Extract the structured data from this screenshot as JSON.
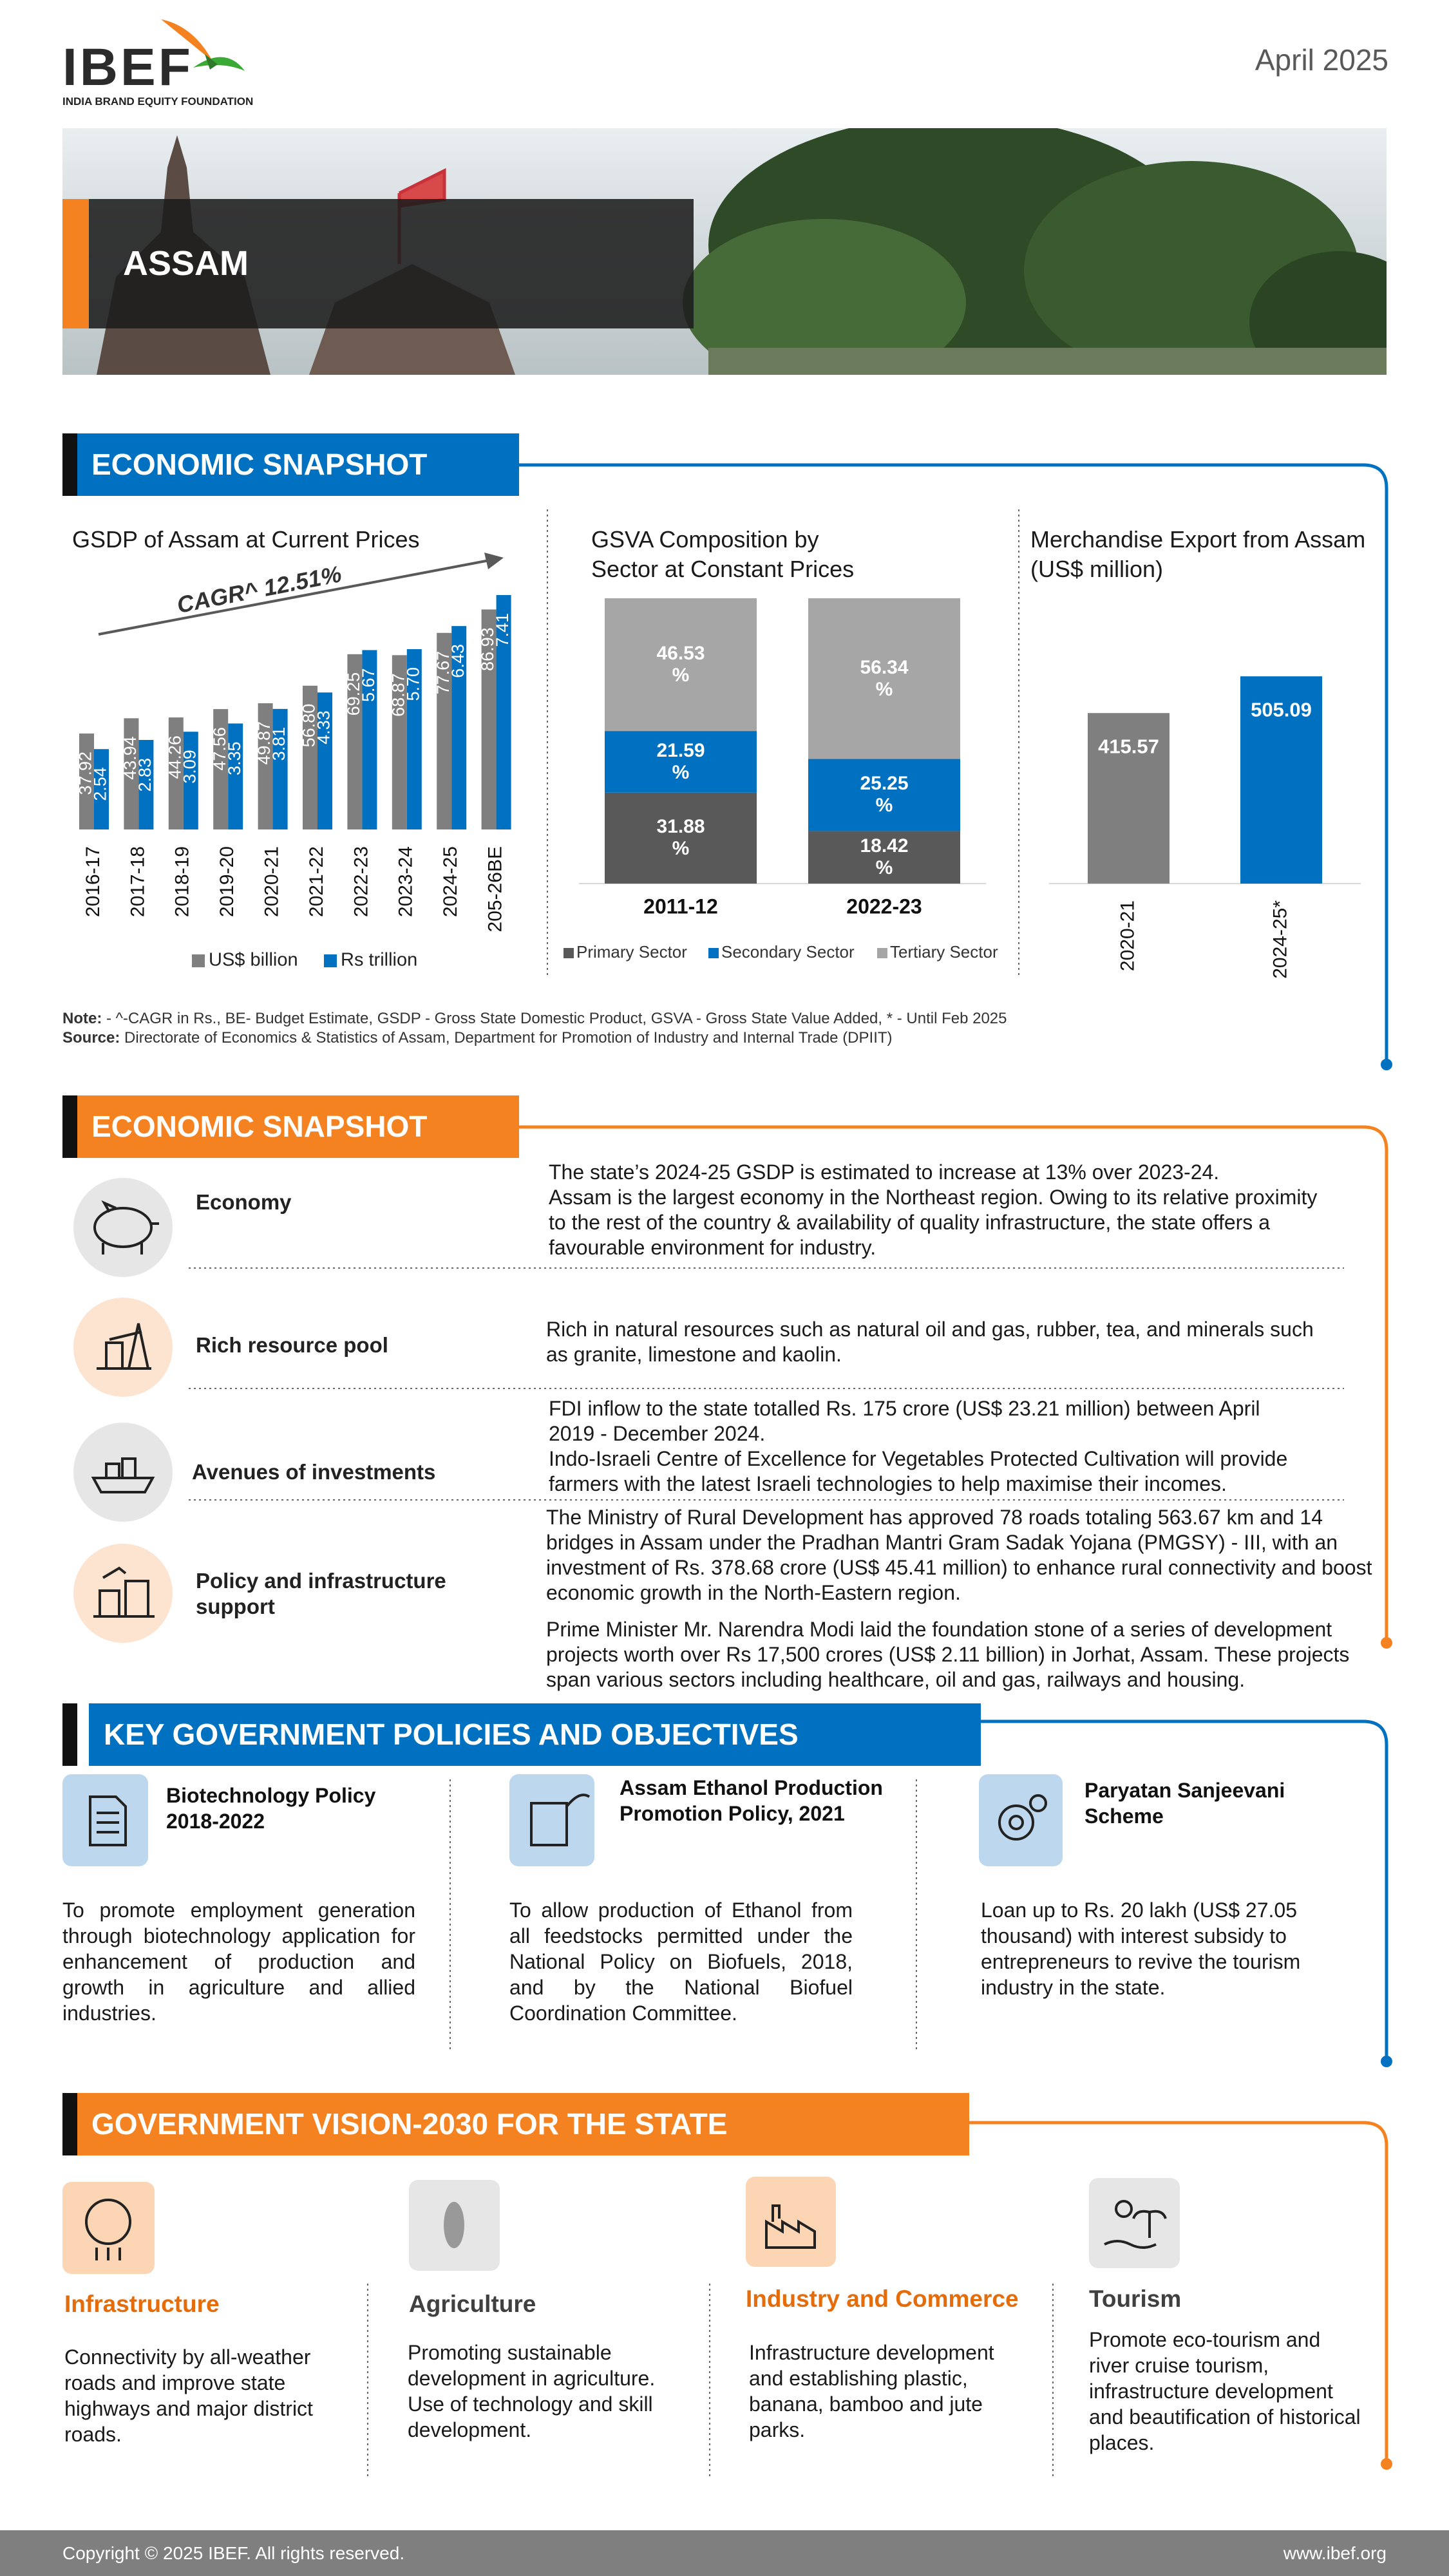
{
  "header": {
    "logo": "IBEF",
    "logo_subtitle": "INDIA BRAND EQUITY FOUNDATION",
    "date": "April 2025",
    "state": "ASSAM"
  },
  "snapshot_1": {
    "title": "ECONOMIC SNAPSHOT"
  },
  "chart_data": [
    {
      "type": "bar",
      "title": "GSDP of Assam at Current Prices",
      "annotation": "CAGR^ 12.51%",
      "categories": [
        "2016-17",
        "2017-18",
        "2018-19",
        "2019-20",
        "2020-21",
        "2021-22",
        "2022-23",
        "2023-24",
        "2024-25",
        "205-26BE"
      ],
      "series": [
        {
          "name": "US$ billion",
          "color": "#7f7f7f",
          "values": [
            37.92,
            43.94,
            44.26,
            47.56,
            49.87,
            56.8,
            69.25,
            68.87,
            77.67,
            86.93
          ],
          "value_labels": [
            "37.92",
            "43.94",
            "44.26",
            "47.56",
            "49.87",
            "56.80",
            "69.25",
            "68.87",
            "77.67",
            "86.93"
          ]
        },
        {
          "name": "Rs trillion",
          "color": "#0070c0",
          "axis": "y2",
          "values": [
            2.54,
            2.83,
            3.09,
            3.35,
            3.81,
            4.33,
            5.67,
            5.7,
            6.43,
            7.41
          ],
          "value_labels": [
            "2.54",
            "2.83",
            "3.09",
            "3.35",
            "3.81",
            "4.33",
            "5.67",
            "5.70",
            "6.43",
            "7.41"
          ]
        }
      ],
      "ylim": [
        0,
        100
      ],
      "y2lim": [
        0,
        8
      ]
    },
    {
      "type": "stacked_bar",
      "title": "GSVA Composition by Sector at Constant Prices",
      "categories": [
        "2011-12",
        "2022-23"
      ],
      "series": [
        {
          "name": "Primary Sector",
          "color": "#595959",
          "values": [
            31.88,
            18.42
          ],
          "value_labels": [
            "31.88 %",
            "18.42 %"
          ]
        },
        {
          "name": "Secondary Sector",
          "color": "#0070c0",
          "values": [
            21.59,
            25.25
          ],
          "value_labels": [
            "21.59 %",
            "25.25 %"
          ]
        },
        {
          "name": "Tertiary Sector",
          "color": "#a6a6a6",
          "values": [
            46.53,
            56.34
          ],
          "value_labels": [
            "46.53 %",
            "56.34 %"
          ]
        }
      ],
      "ylim": [
        0,
        100
      ]
    },
    {
      "type": "bar",
      "title": "Merchandise Export from Assam (US$ million)",
      "categories": [
        "2020-21",
        "2024-25*"
      ],
      "values": [
        415.57,
        505.09
      ],
      "colors": [
        "#7f7f7f",
        "#0070c0"
      ],
      "ylim": [
        0,
        700
      ]
    }
  ],
  "notes": {
    "note_label": "Note:",
    "note": "- ^-CAGR in Rs., BE- Budget Estimate, GSDP - Gross State Domestic Product, GSVA - Gross State Value Added, * - Until Feb 2025",
    "source_label": "Source:",
    "source": "Directorate of Economics & Statistics of Assam, Department for Promotion of Industry and Internal Trade (DPIIT)"
  },
  "snapshot_2": {
    "title": "ECONOMIC SNAPSHOT",
    "rows": [
      {
        "label": "Economy",
        "paragraphs": [
          "The state’s 2024-25 GSDP is estimated to increase at 13% over 2023-24.",
          "Assam is the largest economy in the Northeast region. Owing to its relative proximity to the rest of the country & availability of quality infrastructure, the state offers a favourable environment for industry."
        ]
      },
      {
        "label": "Rich resource pool",
        "paragraphs": [
          "Rich in natural resources such as natural oil and gas, rubber, tea, and minerals such as granite, limestone and kaolin."
        ]
      },
      {
        "label": "Avenues of investments",
        "paragraphs": [
          "FDI inflow to the state totalled Rs. 175 crore (US$ 23.21 million) between April 2019 - December 2024.",
          "Indo-Israeli Centre of Excellence for Vegetables Protected Cultivation will provide farmers with the latest Israeli technologies to help maximise their incomes."
        ]
      },
      {
        "label": "Policy and infrastructure support",
        "paragraphs": [
          "The Ministry of Rural Development has approved 78 roads totaling 563.67 km and 14 bridges in Assam under the Pradhan Mantri Gram Sadak Yojana (PMGSY) - III, with an investment of Rs. 378.68 crore (US$ 45.41 million) to enhance rural connectivity and boost economic growth in the North-Eastern region.",
          "Prime Minister Mr. Narendra Modi laid the foundation stone of a series of development projects worth over Rs 17,500 crores (US$ 2.11 billion) in Jorhat, Assam. These projects span various sectors including healthcare, oil and gas, railways and housing."
        ]
      }
    ]
  },
  "policies": {
    "title": "KEY GOVERNMENT POLICIES AND OBJECTIVES",
    "items": [
      {
        "title": "Biotechnology Policy 2018-2022",
        "description": "To promote employment generation through biotechnology application for enhancement of production and growth in agriculture and allied industries."
      },
      {
        "title": "Assam Ethanol Production Promotion Policy, 2021",
        "description": "To allow production of Ethanol from all feedstocks permitted under the National Policy on Biofuels, 2018, and by the National Biofuel Coordination Committee."
      },
      {
        "title": "Paryatan Sanjeevani Scheme",
        "description": "Loan up to Rs. 20 lakh (US$ 27.05 thousand) with interest subsidy to entrepreneurs to revive the tourism industry in the state."
      }
    ]
  },
  "vision": {
    "title": "GOVERNMENT VISION-2030 FOR THE STATE",
    "items": [
      {
        "title": "Infrastructure",
        "description": "Connectivity by all-weather roads and improve state highways and major district roads."
      },
      {
        "title": "Agriculture",
        "description": "Promoting sustainable development in agriculture. Use of technology and skill development."
      },
      {
        "title": "Industry and Commerce",
        "description": "Infrastructure development and establishing plastic, banana, bamboo and jute parks."
      },
      {
        "title": "Tourism",
        "description": "Promote eco-tourism and river cruise tourism, infrastructure development and beautification of historical places."
      }
    ]
  },
  "footer": {
    "copyright": "Copyright © 2025 IBEF. All rights reserved.",
    "website": "www.ibef.org"
  }
}
